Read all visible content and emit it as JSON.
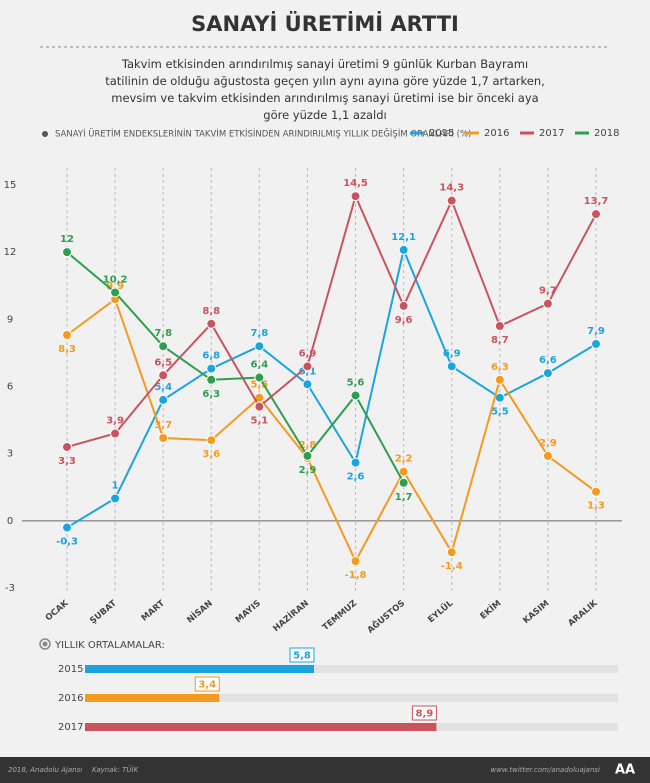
{
  "chart_data": [
    {
      "type": "line",
      "title": "SANAYİ ÜRETİMİ ARTTI",
      "subtitle": "Takvim etkisinden arındırılmış sanayi üretimi 9 günlük Kurban Bayramı tatilinin de olduğu ağustosta geçen yılın aynı ayına göre yüzde 1,7 artarken, mevsim ve takvim etkisinden arındırılmış sanayi üretimi ise bir önceki aya göre yüzde 1,1 azaldı",
      "y_label": "SANAYİ ÜRETİM ENDEKSLERİNİN TAKVİM ETKİSİNDEN ARINDIRILMIŞ YILLIK DEĞİŞİM ORANLARI (%)",
      "categories": [
        "OCAK",
        "ŞUBAT",
        "MART",
        "NİSAN",
        "MAYIS",
        "HAZİRAN",
        "TEMMUZ",
        "AĞUSTOS",
        "EYLÜL",
        "EKİM",
        "KASIM",
        "ARALIK"
      ],
      "series": [
        {
          "name": "2015",
          "color": "#1ba4de",
          "values": [
            -0.3,
            1,
            5.4,
            6.8,
            7.8,
            6.1,
            2.6,
            12.1,
            6.9,
            5.5,
            6.6,
            7.9
          ],
          "value_labels": [
            "-0,3",
            "1",
            "5,4",
            "6,8",
            "7,8",
            "6,1",
            "2,6",
            "12,1",
            "6,9",
            "5,5",
            "6,6",
            "7,9"
          ]
        },
        {
          "name": "2016",
          "color": "#f39a1f",
          "values": [
            8.3,
            9.9,
            3.7,
            3.6,
            5.5,
            2.8,
            -1.8,
            2.2,
            -1.4,
            6.3,
            2.9,
            1.3
          ],
          "value_labels": [
            "8,3",
            "9,9",
            "3,7",
            "3,6",
            "5,5",
            "2,8",
            "-1,8",
            "2,2",
            "-1,4",
            "6,3",
            "2,9",
            "1,3"
          ]
        },
        {
          "name": "2017",
          "color": "#c8555e",
          "values": [
            3.3,
            3.9,
            6.5,
            8.8,
            5.1,
            6.9,
            14.5,
            9.6,
            14.3,
            8.7,
            9.7,
            13.7
          ],
          "value_labels": [
            "3,3",
            "3,9",
            "6,5",
            "8,8",
            "5,1",
            "6,9",
            "14,5",
            "9,6",
            "14,3",
            "8,7",
            "9,7",
            "13,7"
          ]
        },
        {
          "name": "2018",
          "color": "#2e9e4f",
          "values": [
            12,
            10.2,
            7.8,
            6.3,
            6.4,
            2.9,
            5.6,
            1.7,
            null,
            null,
            null,
            null
          ],
          "value_labels": [
            "12",
            "10,2",
            "7,8",
            "6,3",
            "6,4",
            "2,9",
            "5,6",
            "1,7",
            null,
            null,
            null,
            null
          ]
        }
      ],
      "ylim": [
        -3,
        15
      ],
      "yticks": [
        15,
        12,
        9,
        6,
        3,
        0,
        -3
      ],
      "grid": true,
      "legend": "top-right"
    },
    {
      "type": "bar",
      "title": "YILLIK ORTALAMALAR:",
      "orientation": "horizontal",
      "categories": [
        "2015",
        "2016",
        "2017"
      ],
      "values": [
        5.8,
        3.4,
        8.9
      ],
      "value_labels": [
        "5,8",
        "3,4",
        "8,9"
      ],
      "colors": [
        "#1ba4de",
        "#f39a1f",
        "#c8555e"
      ],
      "xlim": [
        0,
        13.5
      ]
    }
  ],
  "footer": {
    "copyright": "2018, Anadolu Ajansı",
    "source": "Kaynak: TÜİK",
    "url": "www.twitter.com/anadoluajansi",
    "logo": "AA"
  }
}
